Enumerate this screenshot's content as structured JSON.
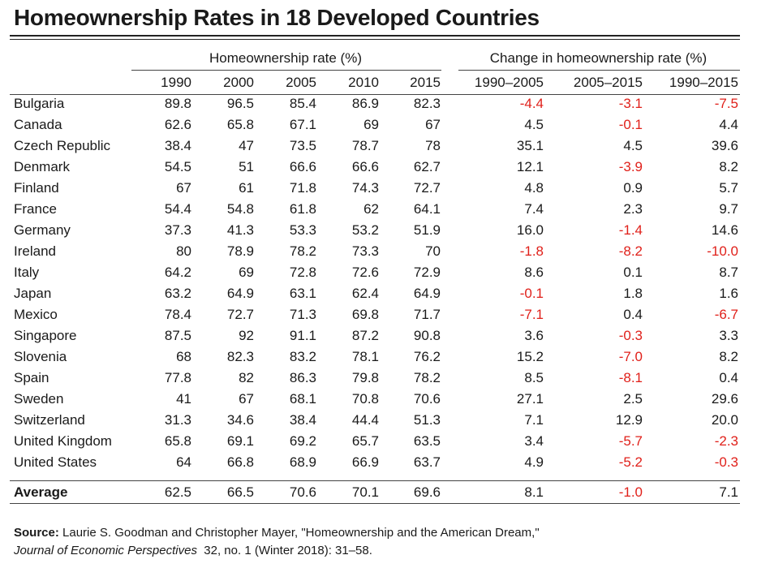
{
  "title": "Homeownership Rates in 18 Developed Countries",
  "group_headers": {
    "rates": "Homeownership rate (%)",
    "changes": "Change in homeownership rate (%)"
  },
  "columns": [
    "1990",
    "2000",
    "2005",
    "2010",
    "2015",
    "1990–2005",
    "2005–2015",
    "1990–2015"
  ],
  "colors": {
    "negative": "#e0201a",
    "text": "#1a1a1a"
  },
  "chart_data": {
    "type": "table",
    "title": "Homeownership Rates in 18 Developed Countries",
    "columns": [
      "1990",
      "2000",
      "2005",
      "2010",
      "2015",
      "1990–2005",
      "2005–2015",
      "1990–2015"
    ],
    "rows": [
      {
        "country": "Bulgaria",
        "values": [
          "89.8",
          "96.5",
          "85.4",
          "86.9",
          "82.3",
          "-4.4",
          "-3.1",
          "-7.5"
        ]
      },
      {
        "country": "Canada",
        "values": [
          "62.6",
          "65.8",
          "67.1",
          "69",
          "67",
          "4.5",
          "-0.1",
          "4.4"
        ]
      },
      {
        "country": "Czech Republic",
        "values": [
          "38.4",
          "47",
          "73.5",
          "78.7",
          "78",
          "35.1",
          "4.5",
          "39.6"
        ]
      },
      {
        "country": "Denmark",
        "values": [
          "54.5",
          "51",
          "66.6",
          "66.6",
          "62.7",
          "12.1",
          "-3.9",
          "8.2"
        ]
      },
      {
        "country": "Finland",
        "values": [
          "67",
          "61",
          "71.8",
          "74.3",
          "72.7",
          "4.8",
          "0.9",
          "5.7"
        ]
      },
      {
        "country": "France",
        "values": [
          "54.4",
          "54.8",
          "61.8",
          "62",
          "64.1",
          "7.4",
          "2.3",
          "9.7"
        ]
      },
      {
        "country": "Germany",
        "values": [
          "37.3",
          "41.3",
          "53.3",
          "53.2",
          "51.9",
          "16.0",
          "-1.4",
          "14.6"
        ]
      },
      {
        "country": "Ireland",
        "values": [
          "80",
          "78.9",
          "78.2",
          "73.3",
          "70",
          "-1.8",
          "-8.2",
          "-10.0"
        ]
      },
      {
        "country": "Italy",
        "values": [
          "64.2",
          "69",
          "72.8",
          "72.6",
          "72.9",
          "8.6",
          "0.1",
          "8.7"
        ]
      },
      {
        "country": "Japan",
        "values": [
          "63.2",
          "64.9",
          "63.1",
          "62.4",
          "64.9",
          "-0.1",
          "1.8",
          "1.6"
        ]
      },
      {
        "country": "Mexico",
        "values": [
          "78.4",
          "72.7",
          "71.3",
          "69.8",
          "71.7",
          "-7.1",
          "0.4",
          "-6.7"
        ]
      },
      {
        "country": "Singapore",
        "values": [
          "87.5",
          "92",
          "91.1",
          "87.2",
          "90.8",
          "3.6",
          "-0.3",
          "3.3"
        ]
      },
      {
        "country": "Slovenia",
        "values": [
          "68",
          "82.3",
          "83.2",
          "78.1",
          "76.2",
          "15.2",
          "-7.0",
          "8.2"
        ]
      },
      {
        "country": "Spain",
        "values": [
          "77.8",
          "82",
          "86.3",
          "79.8",
          "78.2",
          "8.5",
          "-8.1",
          "0.4"
        ]
      },
      {
        "country": "Sweden",
        "values": [
          "41",
          "67",
          "68.1",
          "70.8",
          "70.6",
          "27.1",
          "2.5",
          "29.6"
        ]
      },
      {
        "country": "Switzerland",
        "values": [
          "31.3",
          "34.6",
          "38.4",
          "44.4",
          "51.3",
          "7.1",
          "12.9",
          "20.0"
        ]
      },
      {
        "country": "United Kingdom",
        "values": [
          "65.8",
          "69.1",
          "69.2",
          "65.7",
          "63.5",
          "3.4",
          "-5.7",
          "-2.3"
        ]
      },
      {
        "country": "United States",
        "values": [
          "64",
          "66.8",
          "68.9",
          "66.9",
          "63.7",
          "4.9",
          "-5.2",
          "-0.3"
        ]
      }
    ],
    "average": {
      "country": "Average",
      "values": [
        "62.5",
        "66.5",
        "70.6",
        "70.1",
        "69.6",
        "8.1",
        "-1.0",
        "7.1"
      ]
    }
  },
  "source": {
    "label": "Source:",
    "text": "Laurie S. Goodman and Christopher Mayer, \"Homeownership and the American Dream,\"",
    "journal": "Journal of Economic Perspectives",
    "citation": "32, no. 1 (Winter 2018): 31–58."
  }
}
